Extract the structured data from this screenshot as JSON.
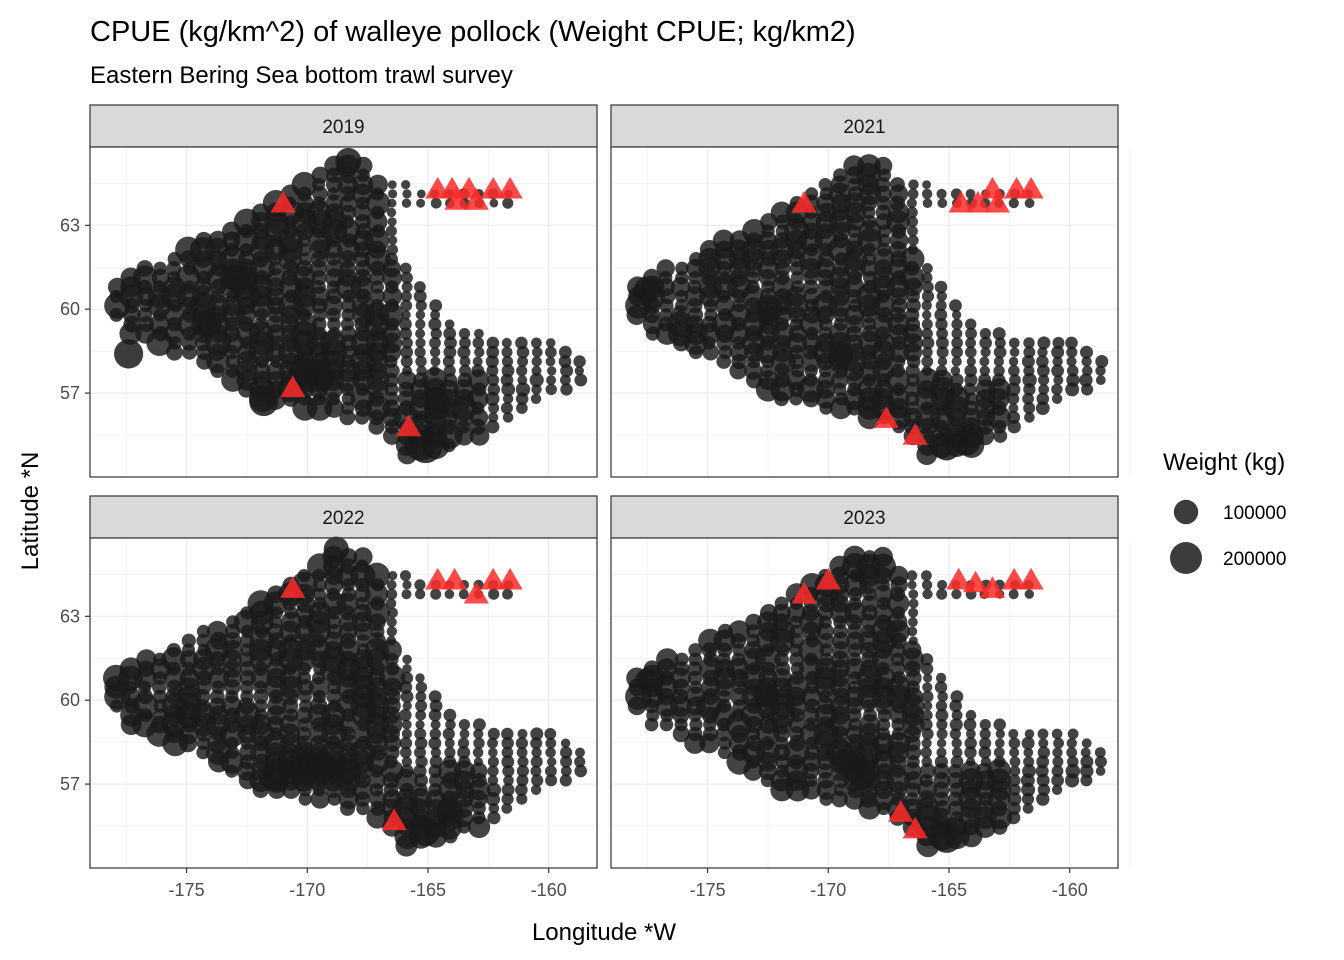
{
  "chart_data": {
    "type": "scatter",
    "title": "CPUE (kg/km^2) of walleye pollock (Weight CPUE; kg/km2)",
    "subtitle": "Eastern Bering Sea bottom trawl survey",
    "xlabel": "Longitude *W",
    "ylabel": "Latitude *N",
    "xlim": [
      -179,
      -158
    ],
    "ylim": [
      54.0,
      65.8
    ],
    "x_ticks": [
      -175,
      -170,
      -165,
      -160
    ],
    "y_ticks": [
      57,
      60,
      63
    ],
    "x_tick_labels": [
      "-175",
      "-170",
      "-165",
      "-160"
    ],
    "y_tick_labels": [
      "57",
      "60",
      "63"
    ],
    "grid": true,
    "legend": {
      "title": "Weight (kg)",
      "placement": "right",
      "entries": [
        {
          "label": "100000",
          "value": 100000
        },
        {
          "label": "200000",
          "value": 200000
        }
      ]
    },
    "point_color": "#1a1a1a",
    "marker_color": "#ff2a2a",
    "panels": [
      {
        "label": "2019",
        "triangles": [
          [
            -171,
            63.8
          ],
          [
            -170.6,
            57.2
          ],
          [
            -165.8,
            55.8
          ],
          [
            -164.6,
            64.3
          ],
          [
            -164,
            64.3
          ],
          [
            -163.8,
            63.9
          ],
          [
            -163.3,
            64.3
          ],
          [
            -163,
            63.9
          ],
          [
            -162.3,
            64.3
          ],
          [
            -161.6,
            64.3
          ]
        ],
        "hotspots": [
          [
            -165.1,
            55.1,
            230000
          ],
          [
            -171.8,
            56.7,
            160000
          ],
          [
            -170.1,
            57.7,
            180000
          ],
          [
            -169.4,
            57.6,
            150000
          ],
          [
            -177.4,
            58.4,
            160000
          ],
          [
            -172.9,
            61.1,
            140000
          ],
          [
            -168.3,
            65.3,
            120000
          ],
          [
            -164.6,
            56.6,
            130000
          ],
          [
            -174.1,
            59.5,
            120000
          ]
        ]
      },
      {
        "label": "2021",
        "triangles": [
          [
            -171,
            63.8
          ],
          [
            -167.6,
            56.1
          ],
          [
            -166.4,
            55.5
          ],
          [
            -164.5,
            63.8
          ],
          [
            -163.8,
            63.8
          ],
          [
            -163.2,
            64.3
          ],
          [
            -163,
            63.8
          ],
          [
            -162.2,
            64.3
          ],
          [
            -161.6,
            64.3
          ]
        ],
        "hotspots": [
          [
            -165.1,
            55.1,
            150000
          ],
          [
            -164.3,
            55.3,
            170000
          ],
          [
            -177.5,
            60.7,
            120000
          ],
          [
            -169.5,
            58.3,
            110000
          ],
          [
            -172.4,
            60.0,
            110000
          ]
        ]
      },
      {
        "label": "2022",
        "triangles": [
          [
            -170.6,
            64.0
          ],
          [
            -166.4,
            55.7
          ],
          [
            -164.6,
            64.3
          ],
          [
            -163.9,
            64.3
          ],
          [
            -163,
            63.8
          ],
          [
            -162.3,
            64.3
          ],
          [
            -161.6,
            64.3
          ]
        ],
        "hotspots": [
          [
            -170.2,
            57.6,
            240000
          ],
          [
            -169.4,
            57.6,
            200000
          ],
          [
            -168.6,
            57.4,
            160000
          ],
          [
            -171.4,
            57.3,
            150000
          ],
          [
            -165.1,
            55.3,
            160000
          ],
          [
            -168.8,
            65.4,
            110000
          ],
          [
            -164.1,
            56.0,
            120000
          ]
        ]
      },
      {
        "label": "2023",
        "triangles": [
          [
            -171,
            63.8
          ],
          [
            -170,
            64.3
          ],
          [
            -167,
            56.0
          ],
          [
            -166.4,
            55.4
          ],
          [
            -164.6,
            64.3
          ],
          [
            -163.9,
            64.2
          ],
          [
            -163.2,
            64.0
          ],
          [
            -162.3,
            64.3
          ],
          [
            -161.6,
            64.3
          ]
        ],
        "hotspots": [
          [
            -165.1,
            55.1,
            190000
          ],
          [
            -168.6,
            57.3,
            140000
          ],
          [
            -169.3,
            57.8,
            120000
          ],
          [
            -177.5,
            60.7,
            100000
          ],
          [
            -172.6,
            60.2,
            110000
          ]
        ]
      }
    ]
  }
}
